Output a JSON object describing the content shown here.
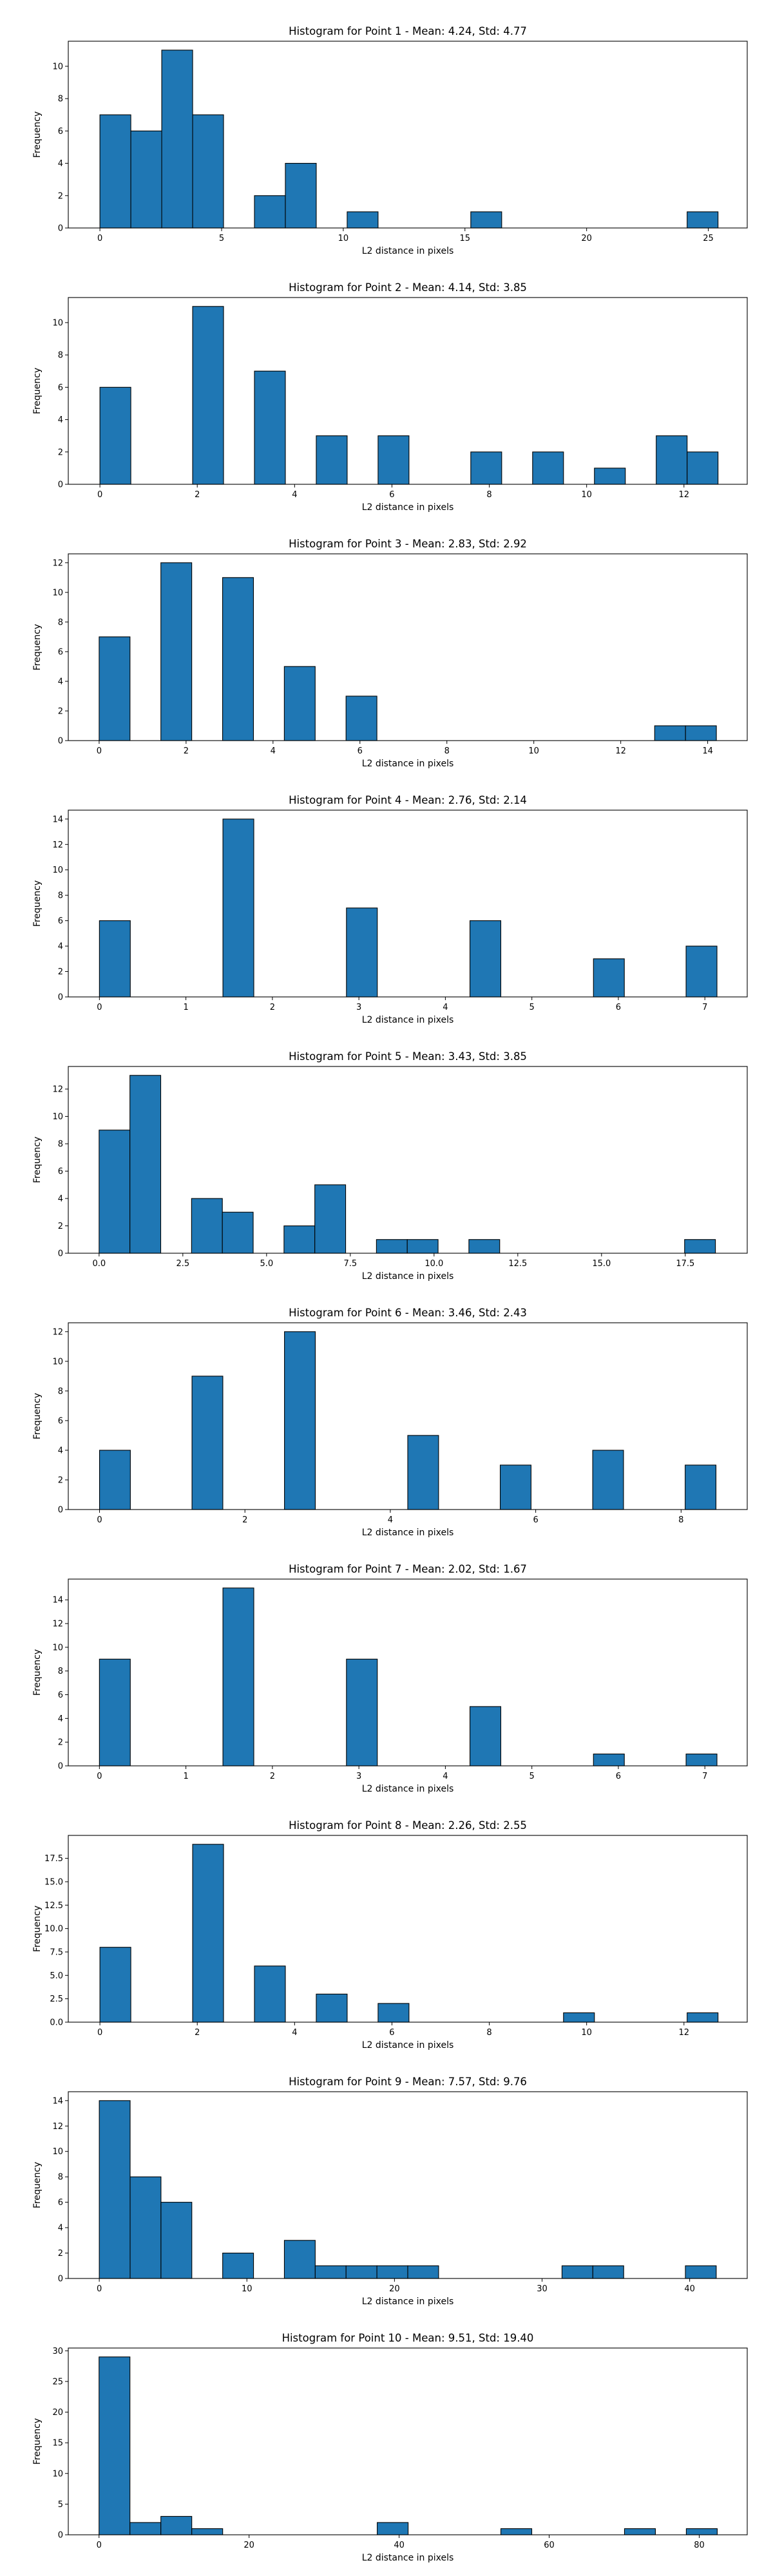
{
  "chart_data": [
    {
      "type": "bar",
      "title": "Histogram for Point 1 - Mean: 4.24, Std: 4.77",
      "xlabel": "L2 distance in pixels",
      "ylabel": "Frequency",
      "xlim": [
        -1.3,
        26.6
      ],
      "ylim": [
        0,
        11.55
      ],
      "xticks": [
        0,
        5,
        10,
        15,
        20,
        25
      ],
      "xtick_labels": [
        "0",
        "5",
        "10",
        "15",
        "20",
        "25"
      ],
      "yticks": [
        0,
        2,
        4,
        6,
        8,
        10
      ],
      "ytick_labels": [
        "0",
        "2",
        "4",
        "6",
        "8",
        "10"
      ],
      "bin_edges": [
        0,
        1.27,
        2.54,
        3.81,
        5.08,
        6.35,
        7.62,
        8.89,
        10.16,
        11.43,
        12.7,
        13.97,
        15.24,
        16.51,
        17.78,
        19.05,
        20.32,
        21.59,
        22.86,
        24.13,
        25.4
      ],
      "counts": [
        7,
        6,
        11,
        7,
        0,
        2,
        4,
        0,
        1,
        0,
        0,
        0,
        1,
        0,
        0,
        0,
        0,
        0,
        0,
        1
      ]
    },
    {
      "type": "bar",
      "title": "Histogram for Point 2 - Mean: 4.14, Std: 3.85",
      "xlabel": "L2 distance in pixels",
      "ylabel": "Frequency",
      "xlim": [
        -0.65,
        13.3
      ],
      "ylim": [
        0,
        11.55
      ],
      "xticks": [
        0,
        2,
        4,
        6,
        8,
        10,
        12
      ],
      "xtick_labels": [
        "0",
        "2",
        "4",
        "6",
        "8",
        "10",
        "12"
      ],
      "yticks": [
        0,
        2,
        4,
        6,
        8,
        10
      ],
      "ytick_labels": [
        "0",
        "2",
        "4",
        "6",
        "8",
        "10"
      ],
      "bin_edges": [
        0,
        0.635,
        1.27,
        1.905,
        2.54,
        3.175,
        3.81,
        4.445,
        5.08,
        5.715,
        6.35,
        6.985,
        7.62,
        8.255,
        8.89,
        9.525,
        10.16,
        10.795,
        11.43,
        12.065,
        12.7
      ],
      "counts": [
        6,
        0,
        0,
        11,
        0,
        7,
        0,
        3,
        0,
        3,
        0,
        0,
        2,
        0,
        2,
        0,
        1,
        0,
        3,
        2
      ]
    },
    {
      "type": "bar",
      "title": "Histogram for Point 3 - Mean: 2.83, Std: 2.92",
      "xlabel": "L2 distance in pixels",
      "ylabel": "Frequency",
      "xlim": [
        -0.71,
        14.91
      ],
      "ylim": [
        0,
        12.6
      ],
      "xticks": [
        0,
        2,
        4,
        6,
        8,
        10,
        12,
        14
      ],
      "xtick_labels": [
        "0",
        "2",
        "4",
        "6",
        "8",
        "10",
        "12",
        "14"
      ],
      "yticks": [
        0,
        2,
        4,
        6,
        8,
        10,
        12
      ],
      "ytick_labels": [
        "0",
        "2",
        "4",
        "6",
        "8",
        "10",
        "12"
      ],
      "bin_edges": [
        0,
        0.71,
        1.42,
        2.13,
        2.84,
        3.55,
        4.26,
        4.97,
        5.68,
        6.39,
        7.1,
        7.81,
        8.52,
        9.23,
        9.94,
        10.65,
        11.36,
        12.07,
        12.78,
        13.49,
        14.2
      ],
      "counts": [
        7,
        0,
        12,
        0,
        11,
        0,
        5,
        0,
        3,
        0,
        0,
        0,
        0,
        0,
        0,
        0,
        0,
        0,
        1,
        1
      ]
    },
    {
      "type": "bar",
      "title": "Histogram for Point 4 - Mean: 2.76, Std: 2.14",
      "xlabel": "L2 distance in pixels",
      "ylabel": "Frequency",
      "xlim": [
        -0.36,
        7.49
      ],
      "ylim": [
        0,
        14.7
      ],
      "xticks": [
        0,
        1,
        2,
        3,
        4,
        5,
        6,
        7
      ],
      "xtick_labels": [
        "0",
        "1",
        "2",
        "3",
        "4",
        "5",
        "6",
        "7"
      ],
      "yticks": [
        0,
        2,
        4,
        6,
        8,
        10,
        12,
        14
      ],
      "ytick_labels": [
        "0",
        "2",
        "4",
        "6",
        "8",
        "10",
        "12",
        "14"
      ],
      "bin_edges": [
        0,
        0.357,
        0.714,
        1.071,
        1.428,
        1.785,
        2.142,
        2.499,
        2.856,
        3.213,
        3.57,
        3.927,
        4.284,
        4.641,
        4.998,
        5.355,
        5.712,
        6.069,
        6.426,
        6.783,
        7.14
      ],
      "counts": [
        6,
        0,
        0,
        0,
        14,
        0,
        0,
        0,
        7,
        0,
        0,
        0,
        6,
        0,
        0,
        0,
        3,
        0,
        0,
        4
      ]
    },
    {
      "type": "bar",
      "title": "Histogram for Point 5 - Mean: 3.43, Std: 3.85",
      "xlabel": "L2 distance in pixels",
      "ylabel": "Frequency",
      "xlim": [
        -0.92,
        19.35
      ],
      "ylim": [
        0,
        13.65
      ],
      "xticks": [
        0,
        2.5,
        5,
        7.5,
        10,
        12.5,
        15,
        17.5
      ],
      "xtick_labels": [
        "0.0",
        "2.5",
        "5.0",
        "7.5",
        "10.0",
        "12.5",
        "15.0",
        "17.5"
      ],
      "yticks": [
        0,
        2,
        4,
        6,
        8,
        10,
        12
      ],
      "ytick_labels": [
        "0",
        "2",
        "4",
        "6",
        "8",
        "10",
        "12"
      ],
      "bin_edges": [
        0,
        0.92,
        1.84,
        2.76,
        3.68,
        4.6,
        5.52,
        6.44,
        7.36,
        8.28,
        9.2,
        10.12,
        11.04,
        11.96,
        12.88,
        13.8,
        14.72,
        15.64,
        16.56,
        17.48,
        18.4
      ],
      "counts": [
        9,
        13,
        0,
        4,
        3,
        0,
        2,
        5,
        0,
        1,
        1,
        0,
        1,
        0,
        0,
        0,
        0,
        0,
        0,
        1
      ]
    },
    {
      "type": "bar",
      "title": "Histogram for Point 6 - Mean: 3.46, Std: 2.43",
      "xlabel": "L2 distance in pixels",
      "ylabel": "Frequency",
      "xlim": [
        -0.43,
        8.91
      ],
      "ylim": [
        0,
        12.6
      ],
      "xticks": [
        0,
        2,
        4,
        6,
        8
      ],
      "xtick_labels": [
        "0",
        "2",
        "4",
        "6",
        "8"
      ],
      "yticks": [
        0,
        2,
        4,
        6,
        8,
        10,
        12
      ],
      "ytick_labels": [
        "0",
        "2",
        "4",
        "6",
        "8",
        "10",
        "12"
      ],
      "bin_edges": [
        0,
        0.424,
        0.848,
        1.272,
        1.696,
        2.12,
        2.544,
        2.968,
        3.392,
        3.816,
        4.24,
        4.664,
        5.088,
        5.512,
        5.936,
        6.36,
        6.784,
        7.208,
        7.632,
        8.056,
        8.48
      ],
      "counts": [
        4,
        0,
        0,
        9,
        0,
        0,
        12,
        0,
        0,
        0,
        5,
        0,
        0,
        3,
        0,
        0,
        4,
        0,
        0,
        3
      ]
    },
    {
      "type": "bar",
      "title": "Histogram for Point 7 - Mean: 2.02, Std: 1.67",
      "xlabel": "L2 distance in pixels",
      "ylabel": "Frequency",
      "xlim": [
        -0.36,
        7.49
      ],
      "ylim": [
        0,
        15.75
      ],
      "xticks": [
        0,
        1,
        2,
        3,
        4,
        5,
        6,
        7
      ],
      "xtick_labels": [
        "0",
        "1",
        "2",
        "3",
        "4",
        "5",
        "6",
        "7"
      ],
      "yticks": [
        0,
        2,
        4,
        6,
        8,
        10,
        12,
        14
      ],
      "ytick_labels": [
        "0",
        "2",
        "4",
        "6",
        "8",
        "10",
        "12",
        "14"
      ],
      "bin_edges": [
        0,
        0.357,
        0.714,
        1.071,
        1.428,
        1.785,
        2.142,
        2.499,
        2.856,
        3.213,
        3.57,
        3.927,
        4.284,
        4.641,
        4.998,
        5.355,
        5.712,
        6.069,
        6.426,
        6.783,
        7.14
      ],
      "counts": [
        9,
        0,
        0,
        0,
        15,
        0,
        0,
        0,
        9,
        0,
        0,
        0,
        5,
        0,
        0,
        0,
        1,
        0,
        0,
        1
      ]
    },
    {
      "type": "bar",
      "title": "Histogram for Point 8 - Mean: 2.26, Std: 2.55",
      "xlabel": "L2 distance in pixels",
      "ylabel": "Frequency",
      "xlim": [
        -0.65,
        13.3
      ],
      "ylim": [
        0,
        19.95
      ],
      "xticks": [
        0,
        2,
        4,
        6,
        8,
        10,
        12
      ],
      "xtick_labels": [
        "0",
        "2",
        "4",
        "6",
        "8",
        "10",
        "12"
      ],
      "yticks": [
        0,
        2.5,
        5,
        7.5,
        10,
        12.5,
        15,
        17.5
      ],
      "ytick_labels": [
        "0.0",
        "2.5",
        "5.0",
        "7.5",
        "10.0",
        "12.5",
        "15.0",
        "17.5"
      ],
      "bin_edges": [
        0,
        0.635,
        1.27,
        1.905,
        2.54,
        3.175,
        3.81,
        4.445,
        5.08,
        5.715,
        6.35,
        6.985,
        7.62,
        8.255,
        8.89,
        9.525,
        10.16,
        10.795,
        11.43,
        12.065,
        12.7
      ],
      "counts": [
        8,
        0,
        0,
        19,
        0,
        6,
        0,
        3,
        0,
        2,
        0,
        0,
        0,
        0,
        0,
        1,
        0,
        0,
        0,
        1
      ]
    },
    {
      "type": "bar",
      "title": "Histogram for Point 9 - Mean: 7.57, Std: 9.76",
      "xlabel": "L2 distance in pixels",
      "ylabel": "Frequency",
      "xlim": [
        -2.1,
        43.9
      ],
      "ylim": [
        0,
        14.7
      ],
      "xticks": [
        0,
        10,
        20,
        30,
        40
      ],
      "xtick_labels": [
        "0",
        "10",
        "20",
        "30",
        "40"
      ],
      "yticks": [
        0,
        2,
        4,
        6,
        8,
        10,
        12,
        14
      ],
      "ytick_labels": [
        "0",
        "2",
        "4",
        "6",
        "8",
        "10",
        "12",
        "14"
      ],
      "bin_edges": [
        0,
        2.09,
        4.18,
        6.27,
        8.36,
        10.45,
        12.54,
        14.63,
        16.72,
        18.81,
        20.9,
        22.99,
        25.08,
        27.17,
        29.26,
        31.35,
        33.44,
        35.53,
        37.62,
        39.71,
        41.8
      ],
      "counts": [
        14,
        8,
        6,
        0,
        2,
        0,
        3,
        1,
        1,
        1,
        1,
        0,
        0,
        0,
        0,
        1,
        1,
        0,
        0,
        1
      ]
    },
    {
      "type": "bar",
      "title": "Histogram for Point 10 - Mean: 9.51, Std: 19.40",
      "xlabel": "L2 distance in pixels",
      "ylabel": "Frequency",
      "xlim": [
        -4.1,
        86.4
      ],
      "ylim": [
        0,
        30.45
      ],
      "xticks": [
        0,
        20,
        40,
        60,
        80
      ],
      "xtick_labels": [
        "0",
        "20",
        "40",
        "60",
        "80"
      ],
      "yticks": [
        0,
        5,
        10,
        15,
        20,
        25,
        30
      ],
      "ytick_labels": [
        "0",
        "5",
        "10",
        "15",
        "20",
        "25",
        "30"
      ],
      "bin_edges": [
        0,
        4.12,
        8.24,
        12.36,
        16.48,
        20.6,
        24.72,
        28.84,
        32.96,
        37.08,
        41.2,
        45.32,
        49.44,
        53.56,
        57.68,
        61.8,
        65.92,
        70.04,
        74.16,
        78.28,
        82.4
      ],
      "counts": [
        29,
        2,
        3,
        1,
        0,
        0,
        0,
        0,
        0,
        2,
        0,
        0,
        0,
        1,
        0,
        0,
        0,
        1,
        0,
        1
      ]
    }
  ]
}
